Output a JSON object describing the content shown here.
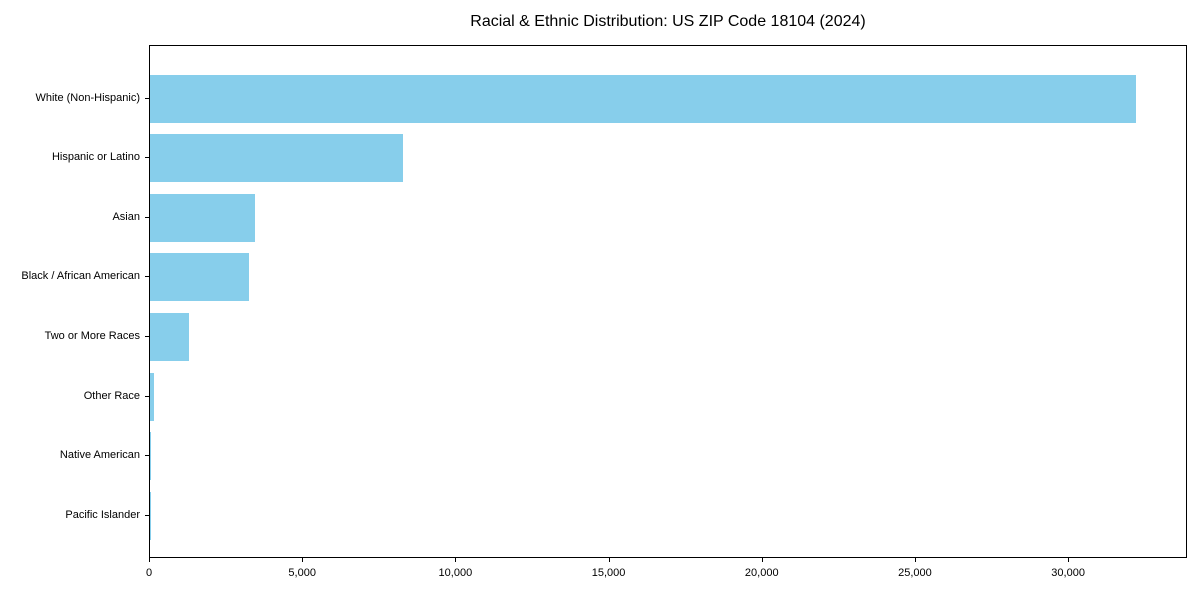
{
  "chart_data": {
    "type": "bar",
    "orientation": "horizontal",
    "title": "Racial & Ethnic Distribution: US ZIP Code 18104 (2024)",
    "categories": [
      "White (Non-Hispanic)",
      "Hispanic or Latino",
      "Asian",
      "Black / African American",
      "Two or More Races",
      "Other Race",
      "Native American",
      "Pacific Islander"
    ],
    "values": [
      32240,
      8290,
      3430,
      3230,
      1270,
      140,
      35,
      12
    ],
    "xlabel": "",
    "ylabel": "",
    "xlim": [
      0,
      33880
    ],
    "x_ticks": [
      0,
      5000,
      10000,
      15000,
      20000,
      25000,
      30000
    ],
    "x_tick_labels": [
      "0",
      "5,000",
      "10,000",
      "15,000",
      "20,000",
      "25,000",
      "30,000"
    ],
    "bar_color": "#87CEEB",
    "axis_color": "#000000",
    "background_color": "#ffffff",
    "grid": false,
    "legend": null
  }
}
